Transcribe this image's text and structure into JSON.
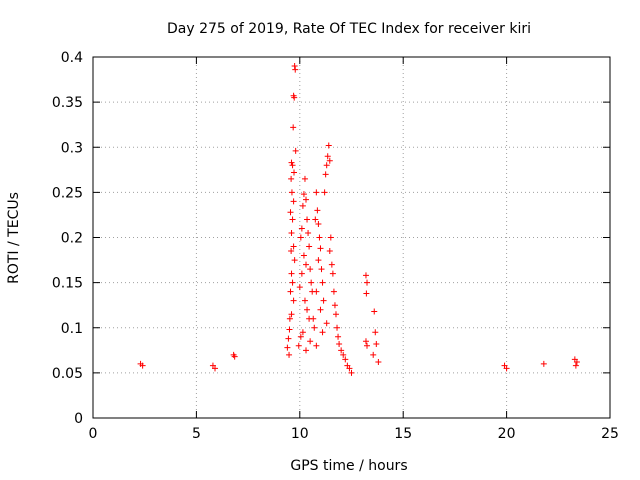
{
  "chart_data": {
    "type": "scatter",
    "title": "Day 275 of 2019, Rate Of TEC Index for receiver kiri",
    "xlabel": "GPS time / hours",
    "ylabel": "ROTI / TECUs",
    "xlim": [
      0,
      25
    ],
    "ylim": [
      0,
      0.4
    ],
    "x_ticks": [
      {
        "value": 0,
        "label": "0"
      },
      {
        "value": 5,
        "label": "5"
      },
      {
        "value": 10,
        "label": "10"
      },
      {
        "value": 15,
        "label": "15"
      },
      {
        "value": 20,
        "label": "20"
      },
      {
        "value": 25,
        "label": "25"
      }
    ],
    "y_ticks": [
      {
        "value": 0,
        "label": "0"
      },
      {
        "value": 0.05,
        "label": "0.05"
      },
      {
        "value": 0.1,
        "label": "0.1"
      },
      {
        "value": 0.15,
        "label": "0.15"
      },
      {
        "value": 0.2,
        "label": "0.2"
      },
      {
        "value": 0.25,
        "label": "0.25"
      },
      {
        "value": 0.3,
        "label": "0.3"
      },
      {
        "value": 0.35,
        "label": "0.35"
      },
      {
        "value": 0.4,
        "label": "0.4"
      }
    ],
    "grid": true,
    "marker": "+",
    "series": [
      {
        "name": "ROTI",
        "color": "#ff0000",
        "points": [
          [
            9.75,
            0.39
          ],
          [
            9.78,
            0.386
          ],
          [
            9.7,
            0.357
          ],
          [
            9.73,
            0.355
          ],
          [
            9.68,
            0.322
          ],
          [
            9.8,
            0.296
          ],
          [
            9.6,
            0.283
          ],
          [
            9.65,
            0.28
          ],
          [
            9.72,
            0.272
          ],
          [
            9.58,
            0.265
          ],
          [
            9.62,
            0.25
          ],
          [
            9.7,
            0.24
          ],
          [
            9.55,
            0.228
          ],
          [
            9.65,
            0.22
          ],
          [
            9.6,
            0.205
          ],
          [
            9.7,
            0.19
          ],
          [
            9.58,
            0.185
          ],
          [
            9.75,
            0.175
          ],
          [
            9.6,
            0.16
          ],
          [
            9.65,
            0.15
          ],
          [
            9.55,
            0.14
          ],
          [
            9.7,
            0.13
          ],
          [
            9.6,
            0.115
          ],
          [
            9.52,
            0.11
          ],
          [
            9.5,
            0.098
          ],
          [
            9.45,
            0.088
          ],
          [
            9.4,
            0.078
          ],
          [
            9.48,
            0.07
          ],
          [
            10.05,
            0.2
          ],
          [
            10.1,
            0.21
          ],
          [
            10.15,
            0.235
          ],
          [
            10.2,
            0.248
          ],
          [
            10.25,
            0.265
          ],
          [
            10.3,
            0.242
          ],
          [
            10.35,
            0.22
          ],
          [
            10.4,
            0.205
          ],
          [
            10.45,
            0.19
          ],
          [
            10.2,
            0.18
          ],
          [
            10.3,
            0.17
          ],
          [
            10.1,
            0.16
          ],
          [
            10.5,
            0.165
          ],
          [
            10.55,
            0.15
          ],
          [
            10.6,
            0.14
          ],
          [
            10.0,
            0.145
          ],
          [
            10.25,
            0.13
          ],
          [
            10.35,
            0.12
          ],
          [
            10.45,
            0.11
          ],
          [
            10.65,
            0.11
          ],
          [
            10.7,
            0.1
          ],
          [
            10.15,
            0.095
          ],
          [
            10.05,
            0.09
          ],
          [
            10.5,
            0.085
          ],
          [
            9.95,
            0.08
          ],
          [
            10.3,
            0.075
          ],
          [
            10.8,
            0.08
          ],
          [
            10.8,
            0.25
          ],
          [
            10.85,
            0.23
          ],
          [
            10.9,
            0.215
          ],
          [
            10.95,
            0.2
          ],
          [
            11.0,
            0.188
          ],
          [
            10.75,
            0.22
          ],
          [
            10.9,
            0.175
          ],
          [
            11.05,
            0.165
          ],
          [
            11.1,
            0.15
          ],
          [
            10.8,
            0.14
          ],
          [
            11.15,
            0.13
          ],
          [
            11.0,
            0.12
          ],
          [
            11.3,
            0.28
          ],
          [
            11.35,
            0.29
          ],
          [
            11.4,
            0.302
          ],
          [
            11.25,
            0.27
          ],
          [
            11.45,
            0.285
          ],
          [
            11.2,
            0.25
          ],
          [
            11.5,
            0.2
          ],
          [
            11.45,
            0.185
          ],
          [
            11.55,
            0.17
          ],
          [
            11.6,
            0.16
          ],
          [
            11.65,
            0.14
          ],
          [
            11.7,
            0.125
          ],
          [
            11.75,
            0.115
          ],
          [
            11.8,
            0.1
          ],
          [
            11.85,
            0.09
          ],
          [
            11.9,
            0.082
          ],
          [
            12.0,
            0.075
          ],
          [
            12.1,
            0.07
          ],
          [
            12.2,
            0.065
          ],
          [
            12.3,
            0.058
          ],
          [
            12.4,
            0.055
          ],
          [
            12.5,
            0.05
          ],
          [
            11.3,
            0.105
          ],
          [
            11.1,
            0.095
          ],
          [
            13.2,
            0.158
          ],
          [
            13.25,
            0.15
          ],
          [
            13.22,
            0.138
          ],
          [
            13.2,
            0.085
          ],
          [
            13.25,
            0.08
          ],
          [
            13.6,
            0.118
          ],
          [
            13.65,
            0.095
          ],
          [
            13.7,
            0.082
          ],
          [
            13.55,
            0.07
          ],
          [
            13.8,
            0.062
          ],
          [
            6.8,
            0.07
          ],
          [
            6.85,
            0.068
          ],
          [
            5.8,
            0.058
          ],
          [
            5.9,
            0.055
          ],
          [
            2.3,
            0.06
          ],
          [
            2.4,
            0.058
          ],
          [
            23.3,
            0.065
          ],
          [
            23.4,
            0.062
          ],
          [
            23.35,
            0.058
          ],
          [
            21.8,
            0.06
          ],
          [
            19.9,
            0.058
          ],
          [
            20.0,
            0.055
          ]
        ]
      }
    ]
  }
}
